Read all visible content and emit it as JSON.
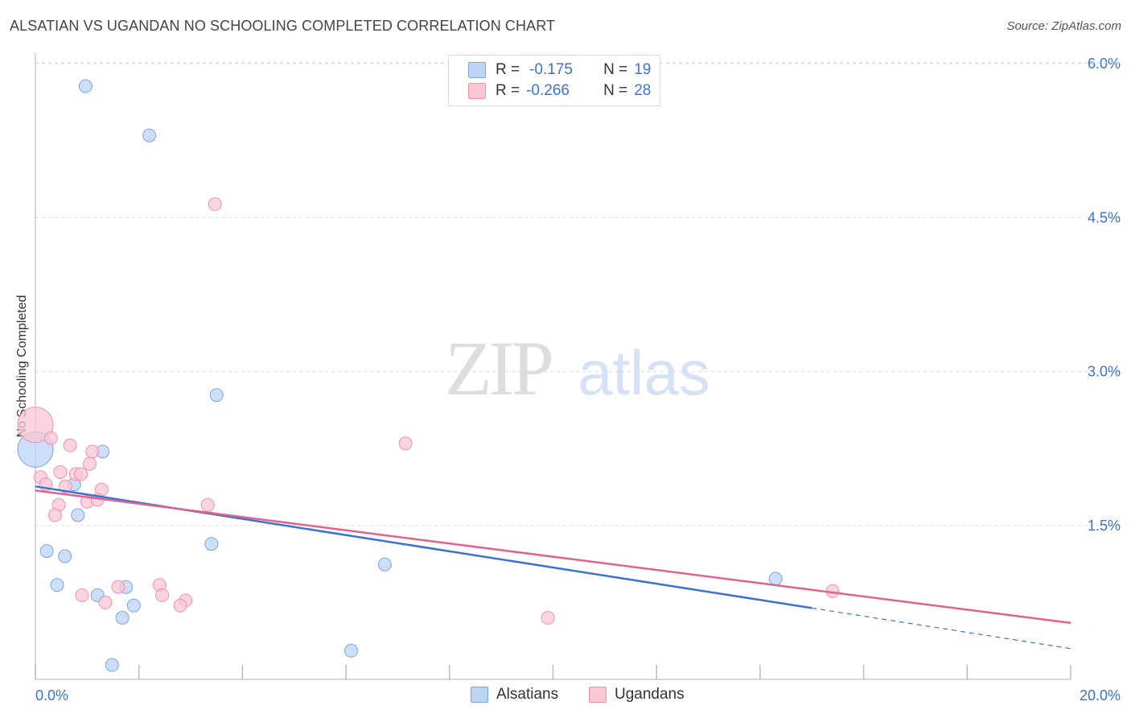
{
  "title": "ALSATIAN VS UGANDAN NO SCHOOLING COMPLETED CORRELATION CHART",
  "source": "Source: ZipAtlas.com",
  "colors": {
    "alsatians_fill": "#bcd4f5",
    "alsatians_stroke": "#7aa6e0",
    "alsatians_line": "#3b72d6",
    "ugandans_fill": "#f9c6d4",
    "ugandans_stroke": "#ee93ae",
    "ugandans_line": "#e0628e",
    "axis_label": "#3b72d6",
    "grid": "#dddddd"
  },
  "legend_top": {
    "rows": [
      {
        "r_label": "R =",
        "r_value": "-0.175",
        "n_label": "N =",
        "n_value": "19"
      },
      {
        "r_label": "R =",
        "r_value": "-0.266",
        "n_label": "N =",
        "n_value": "28"
      }
    ]
  },
  "legend_bottom": {
    "items": [
      "Alsatians",
      "Ugandans"
    ]
  },
  "watermark": {
    "part1": "ZIP",
    "part2": "atlas"
  },
  "chart_data": {
    "type": "scatter",
    "title": "ALSATIAN VS UGANDAN NO SCHOOLING COMPLETED CORRELATION CHART",
    "xlabel": "",
    "ylabel": "No Schooling Completed",
    "xlim": [
      0,
      20
    ],
    "ylim": [
      0,
      6.3
    ],
    "x_tick_labels": [
      "0.0%",
      "20.0%"
    ],
    "y_ticks": [
      1.5,
      3.0,
      4.5,
      6.0
    ],
    "y_tick_labels": [
      "1.5%",
      "3.0%",
      "4.5%",
      "6.0%"
    ],
    "grid": true,
    "series": [
      {
        "name": "Alsatians",
        "r": -0.175,
        "n": 19,
        "points": [
          {
            "x": 0.0,
            "y": 2.24,
            "big": true
          },
          {
            "x": 0.97,
            "y": 5.78
          },
          {
            "x": 2.2,
            "y": 5.3
          },
          {
            "x": 3.5,
            "y": 2.77
          },
          {
            "x": 1.3,
            "y": 2.22
          },
          {
            "x": 0.75,
            "y": 1.9
          },
          {
            "x": 0.82,
            "y": 1.6
          },
          {
            "x": 0.22,
            "y": 1.25
          },
          {
            "x": 0.57,
            "y": 1.2
          },
          {
            "x": 3.4,
            "y": 1.32
          },
          {
            "x": 6.75,
            "y": 1.12
          },
          {
            "x": 0.42,
            "y": 0.92
          },
          {
            "x": 1.2,
            "y": 0.82
          },
          {
            "x": 1.75,
            "y": 0.9
          },
          {
            "x": 1.9,
            "y": 0.72
          },
          {
            "x": 1.68,
            "y": 0.6
          },
          {
            "x": 14.3,
            "y": 0.98
          },
          {
            "x": 6.1,
            "y": 0.28
          },
          {
            "x": 1.48,
            "y": 0.14
          }
        ],
        "trend": {
          "x0": 0.0,
          "y0": 1.88,
          "x_solid_end": 15.0,
          "x1": 20.0,
          "y1": 0.3
        }
      },
      {
        "name": "Ugandans",
        "r": -0.266,
        "n": 28,
        "points": [
          {
            "x": 0.0,
            "y": 2.48,
            "big": true
          },
          {
            "x": 3.47,
            "y": 4.63
          },
          {
            "x": 0.3,
            "y": 2.35
          },
          {
            "x": 0.67,
            "y": 2.28
          },
          {
            "x": 1.1,
            "y": 2.22
          },
          {
            "x": 7.15,
            "y": 2.3
          },
          {
            "x": 1.05,
            "y": 2.1
          },
          {
            "x": 0.48,
            "y": 2.02
          },
          {
            "x": 0.78,
            "y": 2.0
          },
          {
            "x": 0.88,
            "y": 2.0
          },
          {
            "x": 0.1,
            "y": 1.97
          },
          {
            "x": 0.2,
            "y": 1.9
          },
          {
            "x": 0.58,
            "y": 1.88
          },
          {
            "x": 1.28,
            "y": 1.85
          },
          {
            "x": 1.0,
            "y": 1.73
          },
          {
            "x": 1.2,
            "y": 1.75
          },
          {
            "x": 0.45,
            "y": 1.7
          },
          {
            "x": 3.33,
            "y": 1.7
          },
          {
            "x": 0.38,
            "y": 1.6
          },
          {
            "x": 1.6,
            "y": 0.9
          },
          {
            "x": 2.4,
            "y": 0.92
          },
          {
            "x": 0.9,
            "y": 0.82
          },
          {
            "x": 2.45,
            "y": 0.82
          },
          {
            "x": 1.35,
            "y": 0.75
          },
          {
            "x": 2.9,
            "y": 0.77
          },
          {
            "x": 2.8,
            "y": 0.72
          },
          {
            "x": 9.9,
            "y": 0.6
          },
          {
            "x": 15.4,
            "y": 0.86
          }
        ],
        "trend": {
          "x0": 0.0,
          "y0": 1.84,
          "x_solid_end": 20.0,
          "x1": 20.0,
          "y1": 0.55
        }
      }
    ]
  }
}
